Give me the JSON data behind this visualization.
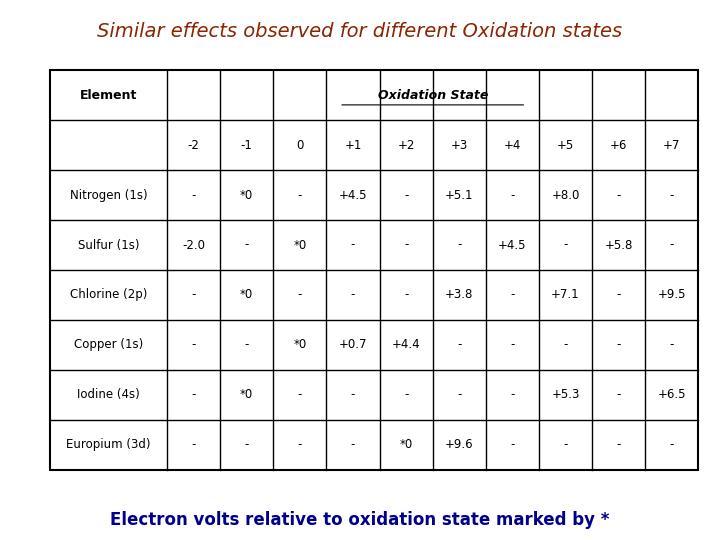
{
  "title": "Similar effects observed for different Oxidation states",
  "title_color": "#8B2500",
  "title_fontsize": 14,
  "title_style": "italic",
  "footer": "Electron volts relative to oxidation state marked by *",
  "footer_color": "#00008B",
  "footer_fontsize": 12,
  "header_row": [
    "-2",
    "-1",
    "0",
    "+1",
    "+2",
    "+3",
    "+4",
    "+5",
    "+6",
    "+7"
  ],
  "col_header1": "Element",
  "col_header2": "Oxidation State",
  "rows": [
    [
      "Nitrogen (1s)",
      "-",
      "*0",
      "-",
      "+4.5",
      "-",
      "+5.1",
      "-",
      "+8.0",
      "-",
      "-"
    ],
    [
      "Sulfur (1s)",
      "-2.0",
      "-",
      "*0",
      "-",
      "-",
      "-",
      "+4.5",
      "-",
      "+5.8",
      "-"
    ],
    [
      "Chlorine (2p)",
      "-",
      "*0",
      "-",
      "-",
      "-",
      "+3.8",
      "-",
      "+7.1",
      "-",
      "+9.5"
    ],
    [
      "Copper (1s)",
      "-",
      "-",
      "*0",
      "+0.7",
      "+4.4",
      "-",
      "-",
      "-",
      "-",
      "-"
    ],
    [
      "Iodine (4s)",
      "-",
      "*0",
      "-",
      "-",
      "-",
      "-",
      "-",
      "+5.3",
      "-",
      "+6.5"
    ],
    [
      "Europium (3d)",
      "-",
      "-",
      "-",
      "-",
      "*0",
      "+9.6",
      "-",
      "-",
      "-",
      "-"
    ]
  ],
  "table_border_color": "#000000",
  "cell_bg": "#ffffff",
  "text_color": "#000000",
  "background_color": "#ffffff"
}
